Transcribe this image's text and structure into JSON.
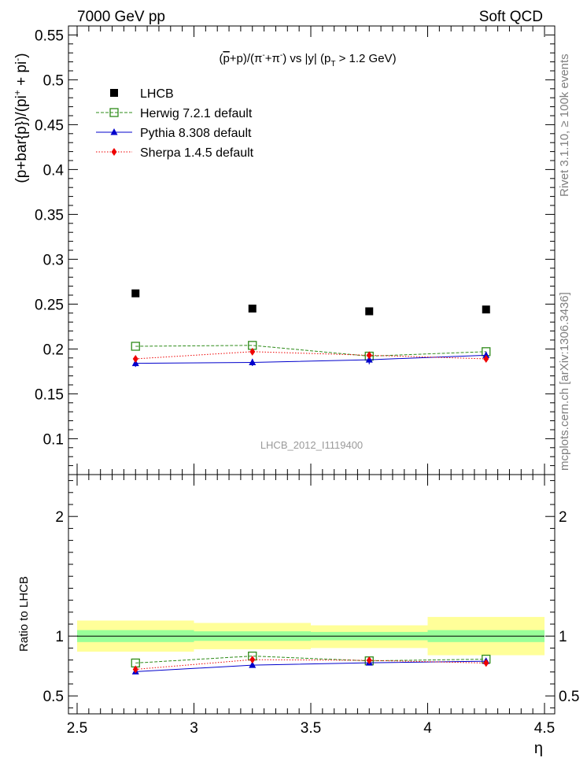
{
  "header": {
    "left": "7000 GeV pp",
    "right": "Soft QCD"
  },
  "side_labels": {
    "rivet": "Rivet 3.1.10, ≥ 100k events",
    "mcplots": "mcplots.cern.ch [arXiv:1306.3436]"
  },
  "watermark": "LHCB_2012_I1119400",
  "colors": {
    "lhcb": "#000000",
    "herwig": "#2e8b19",
    "pythia": "#0000cc",
    "sherpa": "#ee0000",
    "band_outer": "#ffff99",
    "band_inner": "#99ff99"
  },
  "chart_data": [
    {
      "type": "scatter",
      "title": "(p̅+p)/(π⁻+π⁺) vs |y| (pT > 1.2 GeV)",
      "title_parts": {
        "open": "(",
        "pbar": "p",
        "mid1": "+p)/(π",
        "sup1": "-",
        "mid2": "+π",
        "sup2": "-",
        "mid3": ") vs |y| (p",
        "sub": "T",
        "tail": " > 1.2 GeV)"
      },
      "ylabel": "(p+bar{p})/(pi⁺ + pi⁻)",
      "ylabel_parts": {
        "main": "(p+bar{p})/(pi",
        "sup1": "+",
        "mid": " + pi",
        "sup2": "-",
        "close": ")"
      },
      "xlim": [
        2.5,
        4.5
      ],
      "ylim": [
        0.06,
        0.56
      ],
      "yticks": [
        0.1,
        0.15,
        0.2,
        0.25,
        0.3,
        0.35,
        0.4,
        0.45,
        0.5,
        0.55
      ],
      "yticklabels": [
        "0.1",
        "0.15",
        "0.2",
        "0.25",
        "0.3",
        "0.35",
        "0.4",
        "0.45",
        "0.5",
        "0.55"
      ],
      "x": [
        2.75,
        3.25,
        3.75,
        4.25
      ],
      "legend_position": "top-left",
      "series": [
        {
          "name": "LHCB",
          "style": "data",
          "values": [
            0.262,
            0.245,
            0.242,
            0.244
          ]
        },
        {
          "name": "Herwig 7.2.1 default",
          "style": "herwig",
          "values": [
            0.203,
            0.204,
            0.192,
            0.197
          ]
        },
        {
          "name": "Pythia 8.308 default",
          "style": "pythia",
          "values": [
            0.184,
            0.185,
            0.188,
            0.193
          ],
          "errors": [
            0.004,
            0.004,
            0.005,
            0.004
          ]
        },
        {
          "name": "Sherpa 1.4.5 default",
          "style": "sherpa",
          "values": [
            0.189,
            0.197,
            0.193,
            0.189
          ]
        }
      ]
    },
    {
      "type": "line",
      "ylabel": "Ratio to LHCB",
      "xlabel": "η",
      "xlim": [
        2.5,
        4.5
      ],
      "ylim": [
        0.35,
        2.35
      ],
      "yticks": [
        0.5,
        1,
        2
      ],
      "yticklabels": [
        "0.5",
        "1",
        "2"
      ],
      "xticks": [
        2.5,
        3,
        3.5,
        4,
        4.5
      ],
      "xticklabels": [
        "2.5",
        "3",
        "3.5",
        "4",
        "4.5"
      ],
      "x": [
        2.75,
        3.25,
        3.75,
        4.25
      ],
      "bins": [
        [
          2.5,
          3.0
        ],
        [
          3.0,
          3.5
        ],
        [
          3.5,
          4.0
        ],
        [
          4.0,
          4.5
        ]
      ],
      "band_outer": [
        [
          0.87,
          1.13
        ],
        [
          0.89,
          1.11
        ],
        [
          0.9,
          1.09
        ],
        [
          0.84,
          1.16
        ]
      ],
      "band_inner": [
        [
          0.95,
          1.05
        ],
        [
          0.96,
          1.04
        ],
        [
          0.965,
          1.035
        ],
        [
          0.95,
          1.05
        ]
      ],
      "series": [
        {
          "name": "Herwig 7.2.1 default",
          "style": "herwig",
          "values": [
            0.775,
            0.833,
            0.793,
            0.807
          ]
        },
        {
          "name": "Pythia 8.308 default",
          "style": "pythia",
          "values": [
            0.703,
            0.757,
            0.777,
            0.79
          ]
        },
        {
          "name": "Sherpa 1.4.5 default",
          "style": "sherpa",
          "values": [
            0.722,
            0.803,
            0.797,
            0.775
          ]
        }
      ]
    }
  ]
}
